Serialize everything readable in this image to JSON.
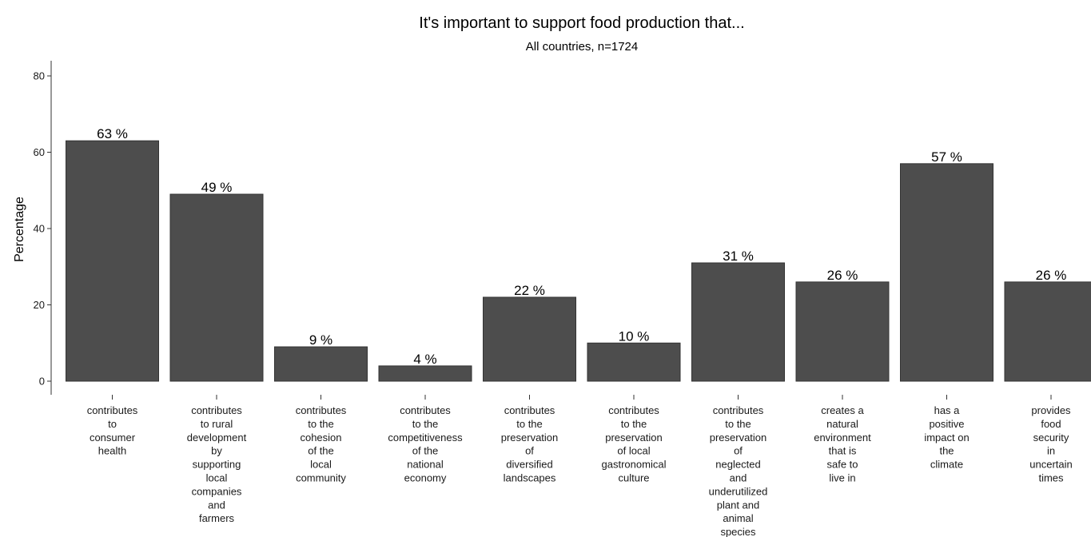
{
  "chart_data": {
    "type": "bar",
    "title": "It's important to support food production that...",
    "subtitle": "All countries, n=1724",
    "xlabel": "",
    "ylabel": "Percentage",
    "ylim": [
      0,
      80
    ],
    "yticks": [
      0,
      20,
      40,
      60,
      80
    ],
    "ytick_labels": [
      "0",
      "20",
      "40",
      "60",
      "80"
    ],
    "grid": false,
    "legend": "none",
    "bar_color": "#4d4d4d",
    "categories": [
      [
        "contributes",
        "to",
        "consumer",
        "health"
      ],
      [
        "contributes",
        "to rural",
        "development",
        "by",
        "supporting",
        "local",
        "companies",
        "and",
        "farmers"
      ],
      [
        "contributes",
        "to the",
        "cohesion",
        "of the",
        "local",
        "community"
      ],
      [
        "contributes",
        "to the",
        "competitiveness",
        "of the",
        "national",
        "economy"
      ],
      [
        "contributes",
        "to the",
        "preservation",
        "of",
        "diversified",
        "landscapes"
      ],
      [
        "contributes",
        "to the",
        "preservation",
        "of local",
        "gastronomical",
        "culture"
      ],
      [
        "contributes",
        "to the",
        "preservation",
        "of",
        "neglected",
        "and",
        "underutilized",
        "plant and",
        "animal",
        "species"
      ],
      [
        "creates a",
        "natural",
        "environment",
        "that is",
        "safe to",
        "live in"
      ],
      [
        "has a",
        "positive",
        "impact on",
        "the",
        "climate"
      ],
      [
        "provides",
        "food",
        "security",
        "in",
        "uncertain",
        "times"
      ]
    ],
    "values": [
      63,
      49,
      9,
      4,
      22,
      10,
      31,
      26,
      57,
      26
    ],
    "data_labels": [
      "63 %",
      "49 %",
      "9 %",
      "4 %",
      "22 %",
      "10 %",
      "31 %",
      "26 %",
      "57 %",
      "26 %"
    ]
  }
}
